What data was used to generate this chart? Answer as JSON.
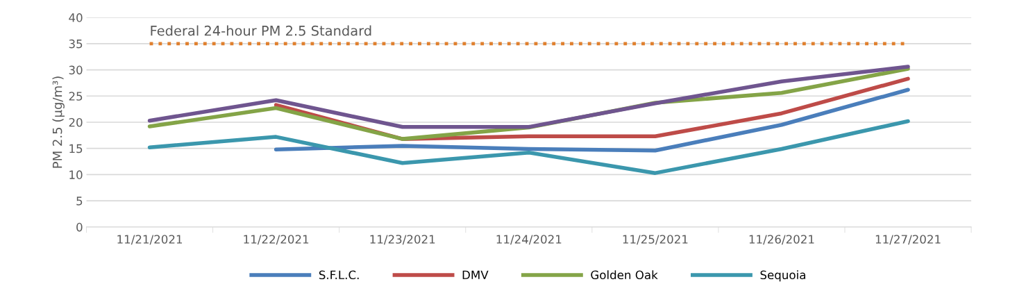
{
  "chart_data": {
    "type": "line",
    "ylabel": "PM 2.5 (µg/m³)",
    "categories": [
      "11/21/2021",
      "11/22/2021",
      "11/23/2021",
      "11/24/2021",
      "11/25/2021",
      "11/26/2021",
      "11/27/2021"
    ],
    "series": [
      {
        "name": "S.F.L.C.",
        "color": "#4a7ebb",
        "values": [
          null,
          14.8,
          15.5,
          14.9,
          14.6,
          19.5,
          26.2
        ]
      },
      {
        "name": "DMV",
        "color": "#be4b48",
        "values": [
          null,
          23.3,
          16.8,
          17.3,
          17.3,
          21.7,
          28.3
        ]
      },
      {
        "name": "Golden Oak",
        "color": "#84a447",
        "values": [
          19.2,
          22.7,
          16.8,
          19.0,
          23.7,
          25.6,
          30.2
        ]
      },
      {
        "color": "#6f558f",
        "values": [
          20.3,
          24.2,
          19.1,
          19.1,
          23.6,
          27.8,
          30.6
        ]
      },
      {
        "name": "Sequoia",
        "color": "#3b97ad",
        "values": [
          15.2,
          17.2,
          12.2,
          14.2,
          10.3,
          14.9,
          20.2
        ]
      }
    ],
    "ref_lines": [
      {
        "axis": "y",
        "value": 35,
        "label": "Federal 24-hour PM 2.5 Standard",
        "color": "#e0802e",
        "line_style": "dotted"
      }
    ],
    "ylim": [
      0,
      40
    ],
    "yticks": [
      0,
      5,
      10,
      15,
      20,
      25,
      30,
      35,
      40
    ],
    "grid": "y",
    "legend": "bottom",
    "line_style": "solid",
    "marker": "none"
  }
}
